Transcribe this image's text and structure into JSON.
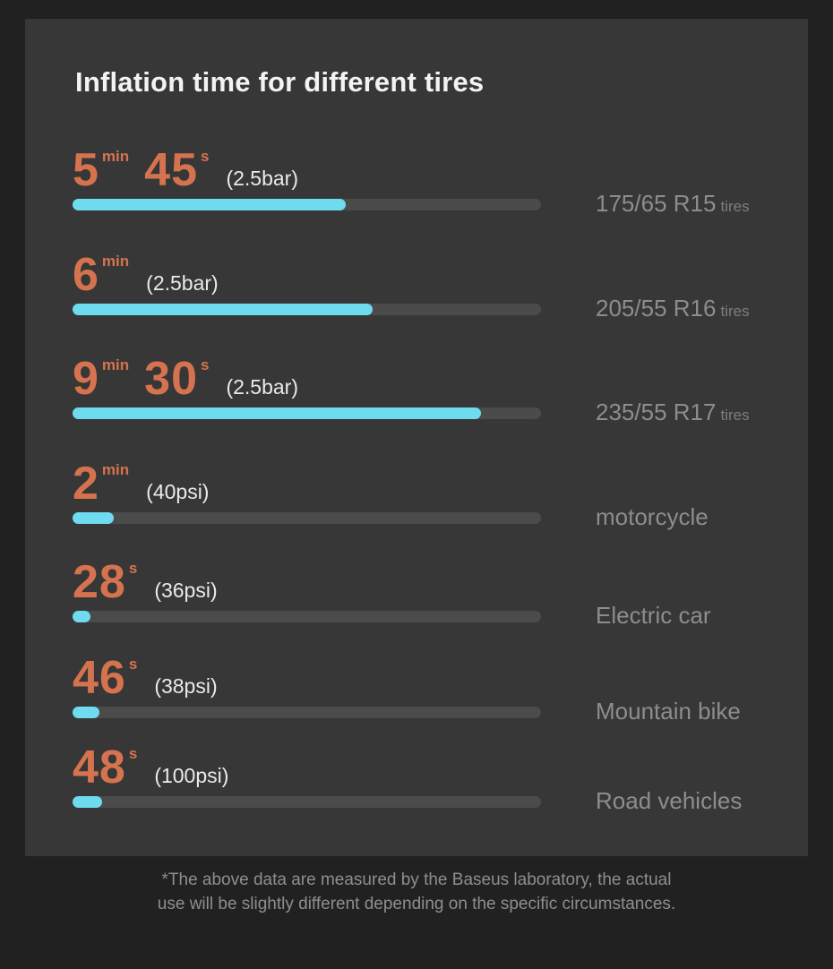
{
  "title": "Inflation time for different tires",
  "rows": [
    {
      "time_parts": [
        {
          "value": "5",
          "unit": "min"
        },
        {
          "value": "45",
          "unit": "s"
        }
      ],
      "pressure": "(2.5bar)",
      "fill_pct": 58.3,
      "label": "175/65 R15",
      "label_suffix": "tires"
    },
    {
      "time_parts": [
        {
          "value": "6",
          "unit": "min"
        }
      ],
      "pressure": "(2.5bar)",
      "fill_pct": 64.0,
      "label": "205/55 R16",
      "label_suffix": "tires"
    },
    {
      "time_parts": [
        {
          "value": "9",
          "unit": "min"
        },
        {
          "value": "30",
          "unit": "s"
        }
      ],
      "pressure": "(2.5bar)",
      "fill_pct": 87.2,
      "label": "235/55 R17",
      "label_suffix": "tires"
    },
    {
      "time_parts": [
        {
          "value": "2",
          "unit": "min"
        }
      ],
      "pressure": "(40psi)",
      "fill_pct": 8.8,
      "label": "motorcycle",
      "label_suffix": ""
    },
    {
      "time_parts": [
        {
          "value": "28",
          "unit": "s"
        }
      ],
      "pressure": "(36psi)",
      "fill_pct": 3.8,
      "label": "Electric car",
      "label_suffix": ""
    },
    {
      "time_parts": [
        {
          "value": "46",
          "unit": "s"
        }
      ],
      "pressure": "(38psi)",
      "fill_pct": 5.7,
      "label": "Mountain bike",
      "label_suffix": ""
    },
    {
      "time_parts": [
        {
          "value": "48",
          "unit": "s"
        }
      ],
      "pressure": "(100psi)",
      "fill_pct": 6.3,
      "label": "Road vehicles",
      "label_suffix": ""
    }
  ],
  "footnote": {
    "line1": "*The above data are measured by the Baseus laboratory, the actual",
    "line2": "use will be slightly different depending on the specific circumstances."
  },
  "colors": {
    "page_background": "#212121",
    "panel_background": "#373737",
    "accent_orange": "#d6734f",
    "bar_fill_cyan": "#6edcee",
    "bar_track_gray": "#4b4b4b",
    "title_text": "#f3f3f3",
    "pressure_text": "#eaeaea",
    "label_text": "#8d8d8d",
    "footnote_text": "#8e8e8e"
  },
  "chart_data": {
    "type": "bar",
    "orientation": "horizontal",
    "title": "Inflation time for different tires",
    "categories": [
      "175/65 R15 tires",
      "205/55 R16 tires",
      "235/55 R17 tires",
      "motorcycle",
      "Electric car",
      "Mountain bike",
      "Road vehicles"
    ],
    "values_seconds": [
      345,
      360,
      570,
      120,
      28,
      46,
      48
    ],
    "time_labels": [
      "5min 45s",
      "6min",
      "9min 30s",
      "2min",
      "28s",
      "46s",
      "48s"
    ],
    "pressures": [
      "2.5bar",
      "2.5bar",
      "2.5bar",
      "40psi",
      "36psi",
      "38psi",
      "100psi"
    ],
    "bar_fill_percent": [
      58.3,
      64.0,
      87.2,
      8.8,
      3.8,
      5.7,
      6.3
    ],
    "xlabel": "",
    "ylabel": "",
    "grid": false,
    "legend": false
  }
}
